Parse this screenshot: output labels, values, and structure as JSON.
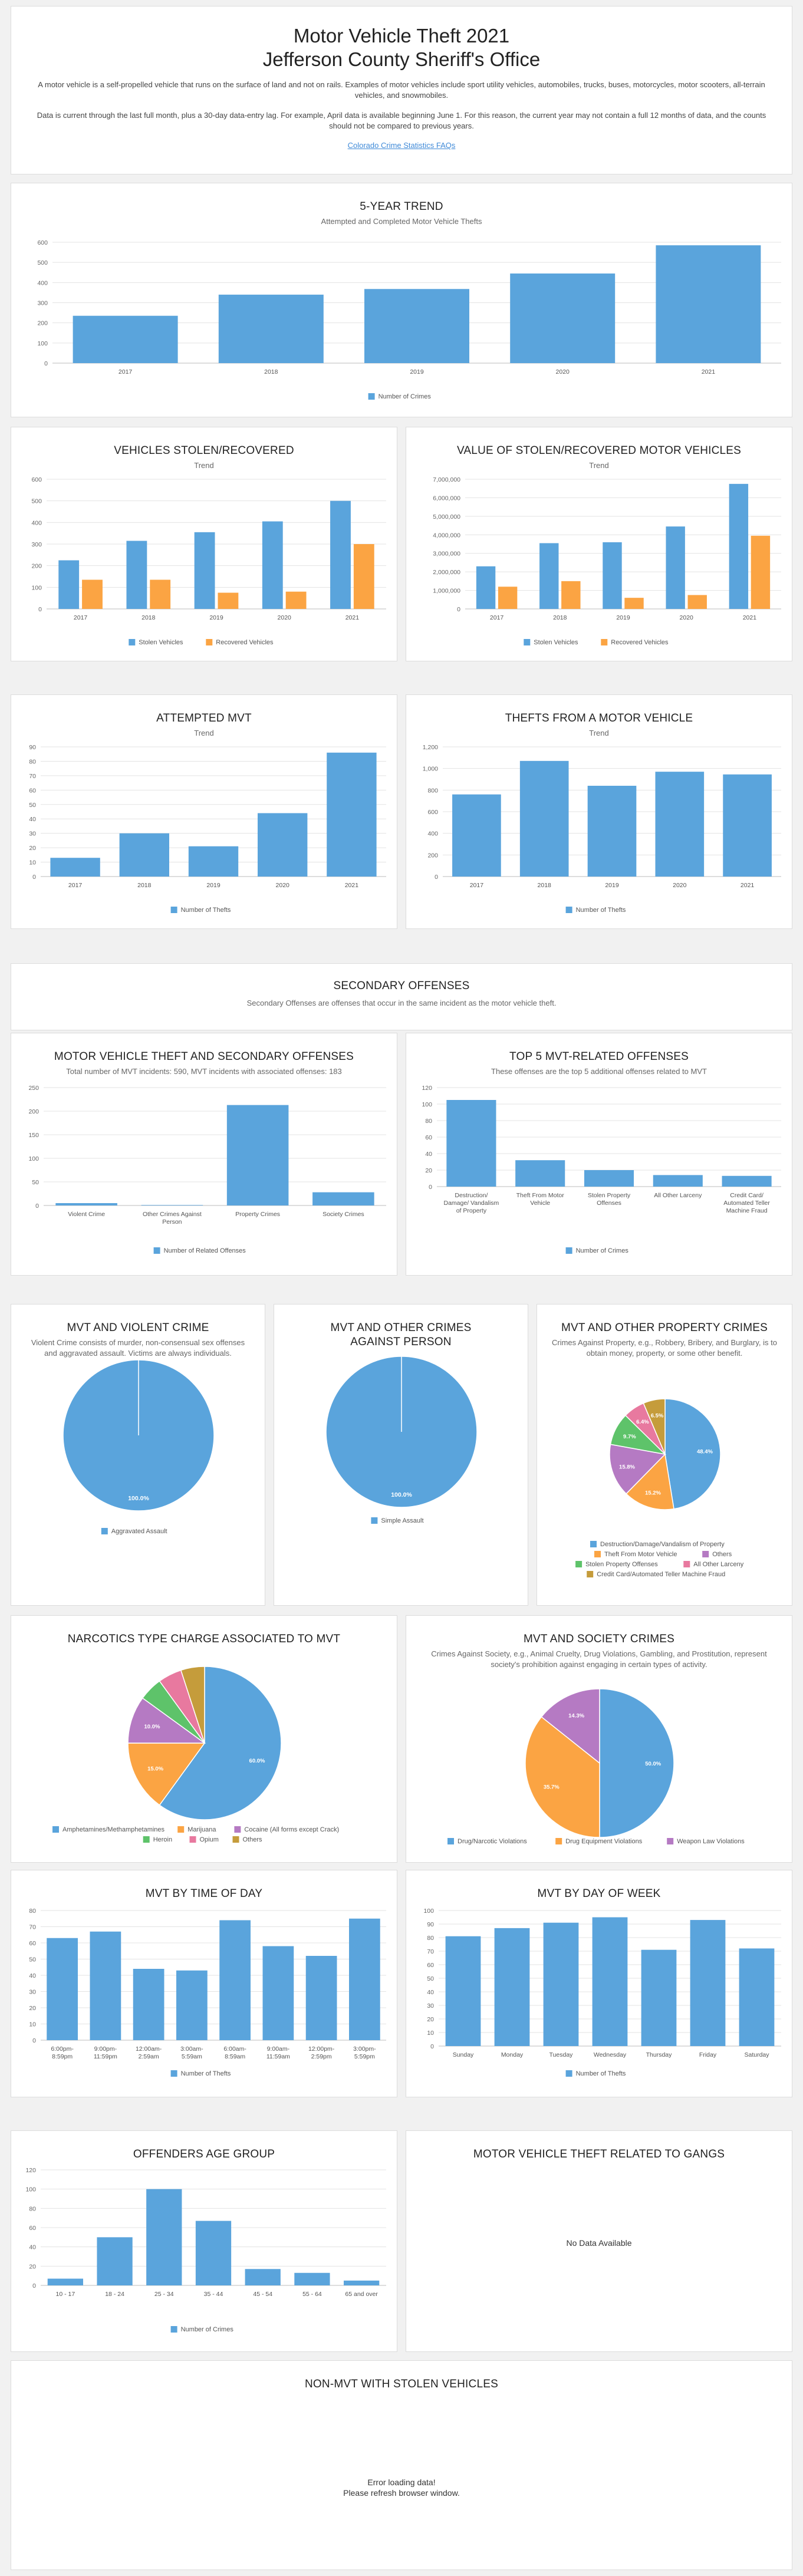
{
  "colors": {
    "blue": "#5aa4dc",
    "orange": "#fba443",
    "green": "#5ec36a",
    "purple": "#b57ac3",
    "pink": "#e8799f",
    "olive": "#c59c3b",
    "axis": "#666",
    "grid": "#e3e3e3"
  },
  "header": {
    "title": "Motor Vehicle Theft 2021",
    "subtitle": "Jefferson County Sheriff's Office",
    "p1": "A motor vehicle is a self-propelled vehicle that runs on the surface of land and not on rails. Examples of motor vehicles include sport utility vehicles, automobiles, trucks, buses, motorcycles, motor scooters, all-terrain vehicles, and snowmobiles.",
    "p2": "Data is current through the last full month, plus a 30-day data-entry lag. For example, April data is available beginning June 1. For this reason, the current year may not contain a full 12 months of data, and the counts should not be compared to previous years.",
    "link": "Colorado Crime Statistics FAQs"
  },
  "trend5": {
    "title": "5-Year Trend",
    "subtitle": "Attempted and Completed Motor Vehicle Thefts"
  },
  "stolen": {
    "title": "Vehicles Stolen/Recovered",
    "subtitle": "Trend"
  },
  "value": {
    "title": "Value of Stolen/Recovered Motor Vehicles",
    "subtitle": "Trend"
  },
  "attempted": {
    "title": "Attempted MVT",
    "subtitle": "Trend"
  },
  "fromveh": {
    "title": "Thefts From a Motor Vehicle",
    "subtitle": "Trend"
  },
  "secondary": {
    "title": "Secondary Offenses",
    "subtitle": "Secondary Offenses are offenses that occur in the same incident as the motor vehicle theft."
  },
  "mvtsec": {
    "title": "Motor Vehicle Theft and Secondary Offenses",
    "subtitle": "Total number of MVT incidents: 590, MVT incidents with associated offenses: 183"
  },
  "top5": {
    "title": "Top 5 MVT-Related Offenses",
    "subtitle": "These offenses are the top 5 additional offenses related to MVT"
  },
  "violent": {
    "title": "MVT and Violent Crime",
    "subtitle": "Violent Crime consists of murder, non-consensual sex offenses and aggravated assault. Victims are always individuals."
  },
  "person": {
    "title": "MVT and Other Crimes Against Person",
    "subtitle": ""
  },
  "property": {
    "title": "MVT and Other Property Crimes",
    "subtitle": "Crimes Against Property, e.g., Robbery, Bribery, and Burglary, is to obtain money, property, or some other benefit."
  },
  "narcotics": {
    "title": "Narcotics Type Charge Associated to MVT",
    "subtitle": ""
  },
  "society": {
    "title": "MVT and Society Crimes",
    "subtitle": "Crimes Against Society, e.g., Animal Cruelty, Drug Violations, Gambling, and Prostitution, represent society's prohibition against engaging in certain types of activity."
  },
  "tod": {
    "title": "MVT by Time of Day",
    "subtitle": ""
  },
  "dow": {
    "title": "MVT by Day of Week",
    "subtitle": ""
  },
  "age": {
    "title": "Offenders Age Group",
    "subtitle": ""
  },
  "gangs": {
    "title": "Motor Vehicle Theft Related to Gangs",
    "message": "No Data Available"
  },
  "nonmvt": {
    "title": "Non-MVT with Stolen Vehicles",
    "message1": "Error loading data!",
    "message2": "Please refresh browser window."
  },
  "chart_data": [
    {
      "id": "trend5",
      "type": "bar",
      "categories": [
        "2017",
        "2018",
        "2019",
        "2020",
        "2021"
      ],
      "series": [
        {
          "name": "Number of Crimes",
          "values": [
            235,
            340,
            368,
            445,
            585
          ]
        }
      ],
      "ylim": [
        0,
        600
      ],
      "yticks": [
        0,
        100,
        200,
        300,
        400,
        500,
        600
      ],
      "legend": "bottom"
    },
    {
      "id": "stolen",
      "type": "bar",
      "categories": [
        "2017",
        "2018",
        "2019",
        "2020",
        "2021"
      ],
      "series": [
        {
          "name": "Stolen Vehicles",
          "values": [
            225,
            315,
            355,
            405,
            500
          ]
        },
        {
          "name": "Recovered Vehicles",
          "values": [
            135,
            135,
            75,
            80,
            300
          ]
        }
      ],
      "ylim": [
        0,
        600
      ],
      "yticks": [
        0,
        100,
        200,
        300,
        400,
        500,
        600
      ],
      "legend": "bottom"
    },
    {
      "id": "value",
      "type": "bar",
      "categories": [
        "2017",
        "2018",
        "2019",
        "2020",
        "2021"
      ],
      "series": [
        {
          "name": "Stolen Vehicles",
          "values": [
            2300000,
            3550000,
            3600000,
            4450000,
            6750000
          ]
        },
        {
          "name": "Recovered Vehicles",
          "values": [
            1200000,
            1500000,
            600000,
            750000,
            3950000
          ]
        }
      ],
      "ylim": [
        0,
        7000000
      ],
      "yticks": [
        0,
        1000000,
        2000000,
        3000000,
        4000000,
        5000000,
        6000000,
        7000000
      ],
      "ytick_labels": [
        "0",
        "1,000,000",
        "2,000,000",
        "3,000,000",
        "4,000,000",
        "5,000,000",
        "6,000,000",
        "7,000,000"
      ],
      "legend": "bottom"
    },
    {
      "id": "attempted",
      "type": "bar",
      "categories": [
        "2017",
        "2018",
        "2019",
        "2020",
        "2021"
      ],
      "series": [
        {
          "name": "Number of Thefts",
          "values": [
            13,
            30,
            21,
            44,
            86
          ]
        }
      ],
      "ylim": [
        0,
        90
      ],
      "yticks": [
        0,
        10,
        20,
        30,
        40,
        50,
        60,
        70,
        80,
        90
      ],
      "legend": "bottom"
    },
    {
      "id": "fromveh",
      "type": "bar",
      "categories": [
        "2017",
        "2018",
        "2019",
        "2020",
        "2021"
      ],
      "series": [
        {
          "name": "Number of Thefts",
          "values": [
            760,
            1070,
            840,
            970,
            945
          ]
        }
      ],
      "ylim": [
        0,
        1200
      ],
      "yticks": [
        0,
        200,
        400,
        600,
        800,
        1000,
        1200
      ],
      "ytick_labels": [
        "0",
        "200",
        "400",
        "600",
        "800",
        "1,000",
        "1,200"
      ],
      "legend": "bottom"
    },
    {
      "id": "mvtsec",
      "type": "bar",
      "categories": [
        "Violent Crime",
        "Other Crimes Against Person",
        "Property Crimes",
        "Society Crimes"
      ],
      "series": [
        {
          "name": "Number of Related Offenses",
          "values": [
            5,
            1,
            213,
            28
          ]
        }
      ],
      "ylim": [
        0,
        250
      ],
      "yticks": [
        0,
        50,
        100,
        150,
        200,
        250
      ],
      "legend": "bottom"
    },
    {
      "id": "top5",
      "type": "bar",
      "categories": [
        "Destruction/ Damage/ Vandalism of Property",
        "Theft From Motor Vehicle",
        "Stolen Property Offenses",
        "All Other Larceny",
        "Credit Card/ Automated Teller Machine Fraud"
      ],
      "series": [
        {
          "name": "Number of Crimes",
          "values": [
            105,
            32,
            20,
            14,
            13
          ]
        }
      ],
      "ylim": [
        0,
        120
      ],
      "yticks": [
        0,
        20,
        40,
        60,
        80,
        100,
        120
      ],
      "legend": "bottom"
    },
    {
      "id": "violent",
      "type": "pie",
      "slices": [
        {
          "label": "Aggravated Assault",
          "value": 100.0,
          "display": "100.0%"
        }
      ],
      "legend": "bottom"
    },
    {
      "id": "person",
      "type": "pie",
      "slices": [
        {
          "label": "Simple Assault",
          "value": 100.0,
          "display": "100.0%"
        }
      ],
      "legend": "bottom"
    },
    {
      "id": "property",
      "type": "pie",
      "slices": [
        {
          "label": "Destruction/Damage/Vandalism of Property",
          "value": 48.4,
          "display": "48.4%"
        },
        {
          "label": "Theft From Motor Vehicle",
          "value": 15.2,
          "display": "15.2%"
        },
        {
          "label": "Others",
          "value": 15.8,
          "display": "15.8%"
        },
        {
          "label": "Stolen Property Offenses",
          "value": 9.7,
          "display": "9.7%"
        },
        {
          "label": "All Other Larceny",
          "value": 6.4,
          "display": "6.4%"
        },
        {
          "label": "Credit Card/Automated Teller Machine Fraud",
          "value": 6.5,
          "display": "6.5%"
        }
      ],
      "legend": "bottom"
    },
    {
      "id": "narcotics",
      "type": "pie",
      "slices": [
        {
          "label": "Amphetamines/Methamphetamines",
          "value": 60.0,
          "display": "60.0%"
        },
        {
          "label": "Marijuana",
          "value": 15.0,
          "display": "15.0%"
        },
        {
          "label": "Cocaine (All forms except Crack)",
          "value": 10.0,
          "display": "10.0%"
        },
        {
          "label": "Heroin",
          "value": 5.0,
          "display": ""
        },
        {
          "label": "Opium",
          "value": 5.0,
          "display": ""
        },
        {
          "label": "Others",
          "value": 5.0,
          "display": ""
        }
      ],
      "legend": "bottom"
    },
    {
      "id": "society",
      "type": "pie",
      "slices": [
        {
          "label": "Drug/Narcotic Violations",
          "value": 50.0,
          "display": "50.0%"
        },
        {
          "label": "Drug Equipment Violations",
          "value": 35.7,
          "display": "35.7%"
        },
        {
          "label": "Weapon Law Violations",
          "value": 14.3,
          "display": "14.3%"
        }
      ],
      "legend": "bottom"
    },
    {
      "id": "tod",
      "type": "bar",
      "categories": [
        "6:00pm- 8:59pm",
        "9:00pm- 11:59pm",
        "12:00am- 2:59am",
        "3:00am- 5:59am",
        "6:00am- 8:59am",
        "9:00am- 11:59am",
        "12:00pm- 2:59pm",
        "3:00pm- 5:59pm"
      ],
      "series": [
        {
          "name": "Number of Thefts",
          "values": [
            63,
            67,
            44,
            43,
            74,
            58,
            52,
            75
          ]
        }
      ],
      "ylim": [
        0,
        80
      ],
      "yticks": [
        0,
        10,
        20,
        30,
        40,
        50,
        60,
        70,
        80
      ],
      "legend": "bottom"
    },
    {
      "id": "dow",
      "type": "bar",
      "categories": [
        "Sunday",
        "Monday",
        "Tuesday",
        "Wednesday",
        "Thursday",
        "Friday",
        "Saturday"
      ],
      "series": [
        {
          "name": "Number of Thefts",
          "values": [
            81,
            87,
            91,
            95,
            71,
            93,
            72
          ]
        }
      ],
      "ylim": [
        0,
        100
      ],
      "yticks": [
        0,
        10,
        20,
        30,
        40,
        50,
        60,
        70,
        80,
        90,
        100
      ],
      "legend": "bottom"
    },
    {
      "id": "age",
      "type": "bar",
      "categories": [
        "10 - 17",
        "18 - 24",
        "25 - 34",
        "35 - 44",
        "45 - 54",
        "55 - 64",
        "65 and over"
      ],
      "series": [
        {
          "name": "Number of Crimes",
          "values": [
            7,
            50,
            100,
            67,
            17,
            13,
            5
          ]
        }
      ],
      "ylim": [
        0,
        120
      ],
      "yticks": [
        0,
        20,
        40,
        60,
        80,
        100,
        120
      ],
      "legend": "bottom"
    }
  ]
}
